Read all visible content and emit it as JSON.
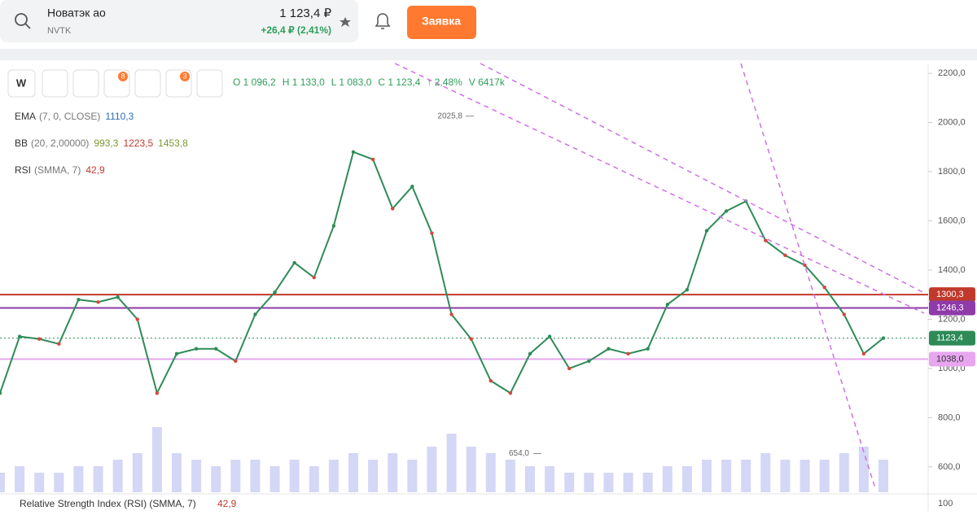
{
  "header": {
    "name": "Новатэк ао",
    "ticker": "NVTK",
    "price": "1 123,4 ₽",
    "change": "+26,4 ₽ (2,41%)",
    "button": "Заявка"
  },
  "toolbar": {
    "interval": "W",
    "badge_a": "8",
    "badge_b": "3",
    "ohlc": [
      "O 1 096,2",
      "H 1 133,0",
      "L 1 083,0",
      "C 1 123,4",
      "↑ 2,48%",
      "V 6417k"
    ]
  },
  "indicators": [
    {
      "name": "EMA",
      "params": "(7, 0, CLOSE)",
      "values": [
        "1110,3"
      ],
      "colors": [
        "#2f6fb3"
      ]
    },
    {
      "name": "BB",
      "params": "(20, 2,00000)",
      "values": [
        "993,3",
        "1223,5",
        "1453,8"
      ],
      "colors": [
        "#7a9a2e",
        "#c0392b",
        "#7a9a2e"
      ]
    },
    {
      "name": "RSI",
      "params": "(SMMA, 7)",
      "values": [
        "42,9"
      ],
      "colors": [
        "#c0392b"
      ]
    }
  ],
  "chart_data": {
    "type": "line",
    "color": "#2e8b57",
    "values": [
      900,
      1130,
      1120,
      1100,
      1280,
      1270,
      1290,
      1200,
      900,
      1060,
      1080,
      1080,
      1030,
      1220,
      1310,
      1430,
      1370,
      1580,
      1880,
      1850,
      1650,
      1740,
      1550,
      1220,
      1120,
      950,
      900,
      1060,
      1130,
      1000,
      1030,
      1080,
      1060,
      1080,
      1260,
      1320,
      1560,
      1640,
      1680,
      1520,
      1460,
      1420,
      1330,
      1220,
      1060,
      1123.4
    ],
    "volume": [
      3,
      4,
      3,
      3,
      4,
      4,
      5,
      6,
      10,
      6,
      5,
      4,
      5,
      5,
      4,
      5,
      4,
      5,
      6,
      5,
      6,
      5,
      7,
      9,
      7,
      6,
      5,
      4,
      4,
      3,
      3,
      3,
      3,
      3,
      4,
      4,
      5,
      5,
      5,
      6,
      5,
      5,
      5,
      6,
      7,
      5
    ],
    "ylim": [
      497,
      2240
    ],
    "yticks": [
      {
        "value": 2200,
        "label": "2200,0"
      },
      {
        "value": 2000,
        "label": "2000,0"
      },
      {
        "value": 1800,
        "label": "1800,0"
      },
      {
        "value": 1600,
        "label": "1600,0"
      },
      {
        "value": 1400,
        "label": "1400,0"
      },
      {
        "value": 1200,
        "label": "1200,0"
      },
      {
        "value": 1000,
        "label": "1000,0"
      },
      {
        "value": 800,
        "label": "800,0"
      },
      {
        "value": 600,
        "label": "600,0"
      }
    ],
    "price_lines": [
      {
        "value": 1300.3,
        "label": "1300,3",
        "color": "#c0392b"
      },
      {
        "value": 1246.3,
        "label": "1246,3",
        "color": "#8e3aa8"
      },
      {
        "value": 1123.4,
        "label": "1123,4",
        "color": "#2e8b57"
      },
      {
        "value": 1038.0,
        "label": "1038,0",
        "color": "#e7a6ef"
      }
    ],
    "annotations": [
      {
        "value": 2025.8,
        "label": "2025,8"
      },
      {
        "value": 654.0,
        "label": "654,0"
      }
    ],
    "rsi_title": "Relative Strength Index (RSI) (SMMA, 7)",
    "rsi_value": "42,9",
    "rsi_top": "100"
  }
}
